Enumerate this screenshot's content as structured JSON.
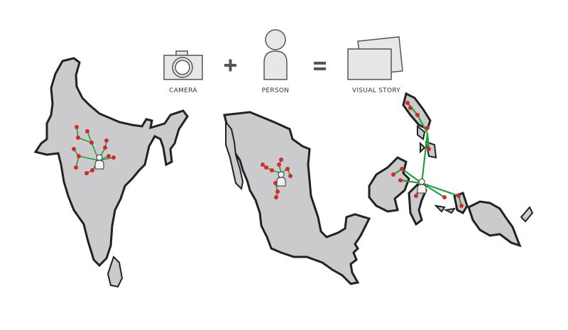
{
  "legend": {
    "camera_label": "CAMERA",
    "plus_symbol": "+",
    "person_label": "PERSON",
    "equals_symbol": "=",
    "story_label": "VISUAL STORY"
  },
  "icons": [
    "camera-icon",
    "person-icon",
    "photo-stack-icon"
  ],
  "maps": [
    "india-map",
    "mexico-map",
    "philippines-map"
  ],
  "colors": {
    "land": "#cbcbcd",
    "outline": "#222222",
    "network_edge": "#1fa23a",
    "network_node": "#d9282a"
  }
}
